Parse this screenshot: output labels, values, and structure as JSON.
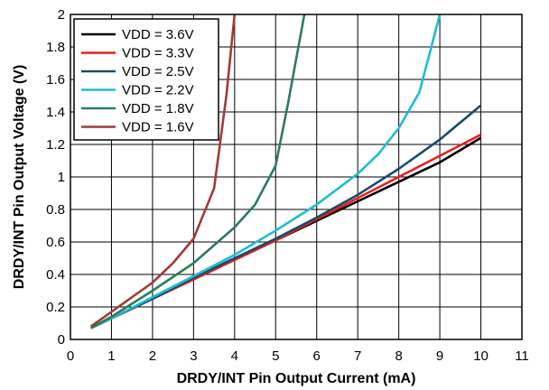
{
  "chart_data": {
    "type": "line",
    "title": "",
    "xlabel": "DRDY/INT Pin Output Current (mA)",
    "ylabel": "DRDY/INT Pin Output Voltage (V)",
    "xlim": [
      0,
      11
    ],
    "ylim": [
      0,
      2
    ],
    "xticks": [
      0,
      1,
      2,
      3,
      4,
      5,
      6,
      7,
      8,
      9,
      10,
      11
    ],
    "xtick_labels": [
      "0",
      "1",
      "2",
      "3",
      "4",
      "5",
      "6",
      "7",
      "8",
      "9",
      "10",
      "11"
    ],
    "yticks": [
      0,
      0.2,
      0.4,
      0.6,
      0.8,
      1,
      1.2,
      1.4,
      1.6,
      1.8,
      2
    ],
    "ytick_labels": [
      "0",
      "0.2",
      "0.4",
      "0.6",
      "0.8",
      "1",
      "1.2",
      "1.4",
      "1.6",
      "1.8",
      "2"
    ],
    "grid": true,
    "legend_position": "top-left",
    "series": [
      {
        "name": "VDD = 3.6V",
        "color": "#000000",
        "x": [
          0.5,
          1,
          2,
          3,
          4,
          5,
          6,
          7,
          8,
          9,
          10
        ],
        "y": [
          0.07,
          0.13,
          0.25,
          0.37,
          0.49,
          0.61,
          0.73,
          0.85,
          0.97,
          1.09,
          1.24
        ]
      },
      {
        "name": "VDD = 3.3V",
        "color": "#ee1c1c",
        "x": [
          0.5,
          1,
          2,
          3,
          4,
          5,
          6,
          7,
          8,
          9,
          10
        ],
        "y": [
          0.07,
          0.13,
          0.25,
          0.37,
          0.49,
          0.61,
          0.74,
          0.87,
          1.0,
          1.13,
          1.26
        ]
      },
      {
        "name": "VDD = 2.5V",
        "color": "#184a6b",
        "x": [
          0.5,
          1,
          2,
          3,
          4,
          5,
          6,
          7,
          8,
          9,
          10
        ],
        "y": [
          0.07,
          0.13,
          0.25,
          0.38,
          0.5,
          0.62,
          0.75,
          0.89,
          1.05,
          1.23,
          1.44
        ]
      },
      {
        "name": "VDD = 2.2V",
        "color": "#1fbcd2",
        "x": [
          0.5,
          1,
          2,
          3,
          4,
          5,
          6,
          7,
          7.5,
          8,
          8.5,
          9
        ],
        "y": [
          0.07,
          0.13,
          0.26,
          0.39,
          0.52,
          0.67,
          0.83,
          1.02,
          1.14,
          1.3,
          1.52,
          2.0
        ]
      },
      {
        "name": "VDD = 1.8V",
        "color": "#2e7b5a",
        "x": [
          0.5,
          1,
          2,
          3,
          3.5,
          4,
          4.5,
          5,
          5.3,
          5.7
        ],
        "y": [
          0.07,
          0.14,
          0.3,
          0.47,
          0.58,
          0.69,
          0.83,
          1.07,
          1.45,
          2.0
        ]
      },
      {
        "name": "VDD = 1.6V",
        "color": "#a13a3a",
        "x": [
          0.5,
          1,
          2,
          2.5,
          3,
          3.5,
          3.8,
          4.0
        ],
        "y": [
          0.08,
          0.17,
          0.35,
          0.47,
          0.62,
          0.93,
          1.5,
          2.0
        ]
      }
    ]
  }
}
